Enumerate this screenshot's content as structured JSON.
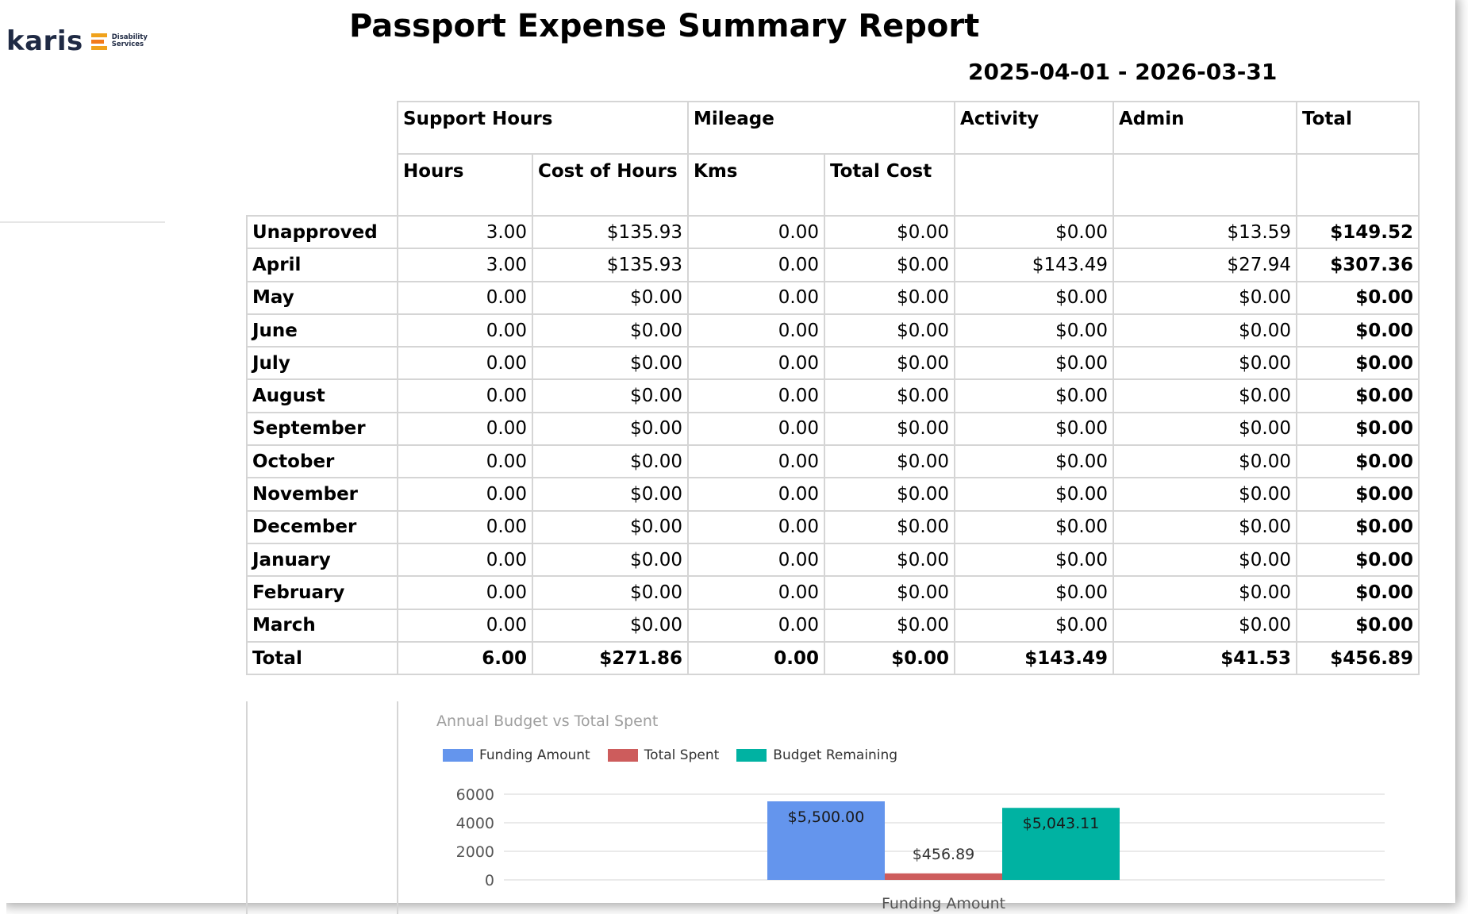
{
  "logo": {
    "word": "karis",
    "sub_line1": "Disability",
    "sub_line2": "Services"
  },
  "title": "Passport Expense Summary Report",
  "date_range": "2025-04-01 - 2026-03-31",
  "headers": {
    "group": [
      "Support Hours",
      "Mileage",
      "Activity",
      "Admin",
      "Total"
    ],
    "sub": [
      "Hours",
      "Cost of Hours",
      "Kms",
      "Total Cost"
    ]
  },
  "rows": [
    {
      "label": "Unapproved",
      "values": [
        "3.00",
        "$135.93",
        "0.00",
        "$0.00",
        "$0.00",
        "$13.59",
        "$149.52"
      ]
    },
    {
      "label": "April",
      "values": [
        "3.00",
        "$135.93",
        "0.00",
        "$0.00",
        "$143.49",
        "$27.94",
        "$307.36"
      ]
    },
    {
      "label": "May",
      "values": [
        "0.00",
        "$0.00",
        "0.00",
        "$0.00",
        "$0.00",
        "$0.00",
        "$0.00"
      ]
    },
    {
      "label": "June",
      "values": [
        "0.00",
        "$0.00",
        "0.00",
        "$0.00",
        "$0.00",
        "$0.00",
        "$0.00"
      ]
    },
    {
      "label": "July",
      "values": [
        "0.00",
        "$0.00",
        "0.00",
        "$0.00",
        "$0.00",
        "$0.00",
        "$0.00"
      ]
    },
    {
      "label": "August",
      "values": [
        "0.00",
        "$0.00",
        "0.00",
        "$0.00",
        "$0.00",
        "$0.00",
        "$0.00"
      ]
    },
    {
      "label": "September",
      "values": [
        "0.00",
        "$0.00",
        "0.00",
        "$0.00",
        "$0.00",
        "$0.00",
        "$0.00"
      ]
    },
    {
      "label": "October",
      "values": [
        "0.00",
        "$0.00",
        "0.00",
        "$0.00",
        "$0.00",
        "$0.00",
        "$0.00"
      ]
    },
    {
      "label": "November",
      "values": [
        "0.00",
        "$0.00",
        "0.00",
        "$0.00",
        "$0.00",
        "$0.00",
        "$0.00"
      ]
    },
    {
      "label": "December",
      "values": [
        "0.00",
        "$0.00",
        "0.00",
        "$0.00",
        "$0.00",
        "$0.00",
        "$0.00"
      ]
    },
    {
      "label": "January",
      "values": [
        "0.00",
        "$0.00",
        "0.00",
        "$0.00",
        "$0.00",
        "$0.00",
        "$0.00"
      ]
    },
    {
      "label": "February",
      "values": [
        "0.00",
        "$0.00",
        "0.00",
        "$0.00",
        "$0.00",
        "$0.00",
        "$0.00"
      ]
    },
    {
      "label": "March",
      "values": [
        "0.00",
        "$0.00",
        "0.00",
        "$0.00",
        "$0.00",
        "$0.00",
        "$0.00"
      ]
    }
  ],
  "total_row": {
    "label": "Total",
    "values": [
      "6.00",
      "$271.86",
      "0.00",
      "$0.00",
      "$143.49",
      "$41.53",
      "$456.89"
    ]
  },
  "chart_data": {
    "type": "bar",
    "title": "Annual Budget vs Total Spent",
    "categories": [
      "Funding Amount"
    ],
    "series": [
      {
        "name": "Funding Amount",
        "values": [
          5500.0
        ],
        "label": "$5,500.00",
        "color": "#6495ed"
      },
      {
        "name": "Total Spent",
        "values": [
          456.89
        ],
        "label": "$456.89",
        "color": "#cd5c5c"
      },
      {
        "name": "Budget Remaining",
        "values": [
          5043.11
        ],
        "label": "$5,043.11",
        "color": "#00b2a2"
      }
    ],
    "yticks": [
      "0",
      "2000",
      "4000",
      "6000"
    ],
    "ylim": [
      0,
      6000
    ],
    "legend_position": "top-left",
    "grid": true
  }
}
